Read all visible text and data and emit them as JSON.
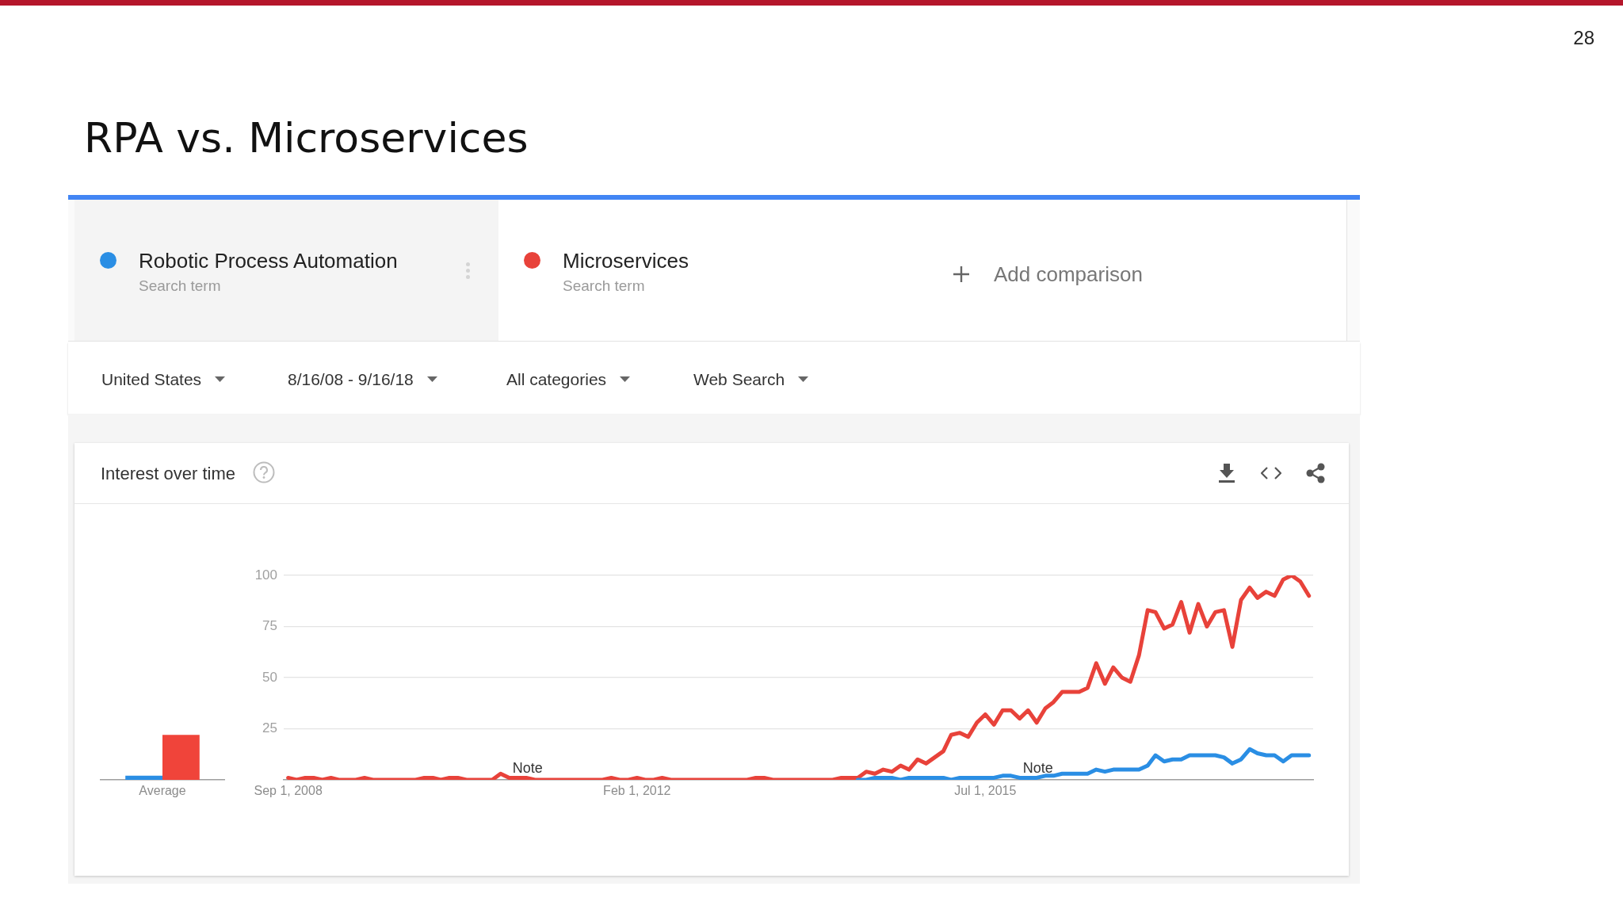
{
  "chart_data": [
    {
      "type": "bar",
      "subtitle": "Interest over time",
      "categories": [
        "Average"
      ],
      "series": [
        {
          "color": "#2a8ee4",
          "values": [
            2
          ]
        },
        {
          "color": "#f0443a",
          "values": [
            22
          ]
        }
      ],
      "ylim": [
        0,
        100
      ],
      "tick_labels": "x"
    },
    {
      "type": "line",
      "title": "RPA vs. Microservices",
      "annotations": [
        "Search term",
        "Search term",
        "Add comparison",
        "United States",
        "8/16/08 - 9/16/18",
        "All categories",
        "Web Search",
        "28",
        {
          "text": "Note",
          "x": "2010-11",
          "y": 1
        },
        {
          "text": "Note",
          "x": "2015-11",
          "y": 1
        }
      ],
      "x": [
        "2008-09",
        "2008-10",
        "2008-11",
        "2008-12",
        "2009-01",
        "2009-02",
        "2009-03",
        "2009-04",
        "2009-05",
        "2009-06",
        "2009-07",
        "2009-08",
        "2009-09",
        "2009-10",
        "2009-11",
        "2009-12",
        "2010-01",
        "2010-02",
        "2010-03",
        "2010-04",
        "2010-05",
        "2010-06",
        "2010-07",
        "2010-08",
        "2010-09",
        "2010-10",
        "2010-11",
        "2010-12",
        "2011-01",
        "2011-02",
        "2011-03",
        "2011-04",
        "2011-05",
        "2011-06",
        "2011-07",
        "2011-08",
        "2011-09",
        "2011-10",
        "2011-11",
        "2011-12",
        "2012-01",
        "2012-02",
        "2012-03",
        "2012-04",
        "2012-05",
        "2012-06",
        "2012-07",
        "2012-08",
        "2012-09",
        "2012-10",
        "2012-11",
        "2012-12",
        "2013-01",
        "2013-02",
        "2013-03",
        "2013-04",
        "2013-05",
        "2013-06",
        "2013-07",
        "2013-08",
        "2013-09",
        "2013-10",
        "2013-11",
        "2013-12",
        "2014-01",
        "2014-02",
        "2014-03",
        "2014-04",
        "2014-05",
        "2014-06",
        "2014-07",
        "2014-08",
        "2014-09",
        "2014-10",
        "2014-11",
        "2014-12",
        "2015-01",
        "2015-02",
        "2015-03",
        "2015-04",
        "2015-05",
        "2015-06",
        "2015-07",
        "2015-08",
        "2015-09",
        "2015-10",
        "2015-11",
        "2015-12",
        "2016-01",
        "2016-02",
        "2016-03",
        "2016-04",
        "2016-05",
        "2016-06",
        "2016-07",
        "2016-08",
        "2016-09",
        "2016-10",
        "2016-11",
        "2016-12",
        "2017-01",
        "2017-02",
        "2017-03",
        "2017-04",
        "2017-05",
        "2017-06",
        "2017-07",
        "2017-08",
        "2017-09",
        "2017-10",
        "2017-11",
        "2017-12",
        "2018-01",
        "2018-02",
        "2018-03",
        "2018-04",
        "2018-05",
        "2018-06",
        "2018-07",
        "2018-08",
        "2018-09"
      ],
      "series": [
        {
          "name": "Robotic Process Automation",
          "color": "#2a8ee4",
          "values": [
            null,
            null,
            null,
            null,
            null,
            null,
            null,
            null,
            null,
            null,
            null,
            null,
            null,
            null,
            null,
            null,
            null,
            null,
            null,
            null,
            null,
            null,
            null,
            null,
            null,
            null,
            null,
            null,
            null,
            null,
            null,
            null,
            null,
            null,
            null,
            null,
            null,
            null,
            null,
            null,
            null,
            null,
            null,
            null,
            null,
            null,
            null,
            null,
            null,
            null,
            null,
            null,
            null,
            null,
            null,
            null,
            null,
            null,
            null,
            null,
            null,
            null,
            null,
            null,
            null,
            null,
            null,
            0,
            0,
            1,
            1,
            1,
            0,
            1,
            1,
            1,
            1,
            1,
            0,
            1,
            1,
            1,
            1,
            1,
            2,
            2,
            1,
            1,
            1,
            2,
            2,
            3,
            3,
            3,
            3,
            5,
            4,
            5,
            5,
            5,
            5,
            7,
            12,
            9,
            10,
            10,
            12,
            12,
            12,
            12,
            11,
            8,
            10,
            15,
            13,
            12,
            12,
            9,
            12,
            12,
            12
          ]
        },
        {
          "name": "Microservices",
          "color": "#e8423a",
          "values": [
            1,
            0,
            1,
            1,
            0,
            1,
            0,
            0,
            0,
            1,
            0,
            0,
            0,
            0,
            0,
            0,
            1,
            1,
            0,
            1,
            1,
            0,
            0,
            0,
            0,
            3,
            1,
            1,
            1,
            0,
            0,
            0,
            0,
            0,
            0,
            0,
            0,
            0,
            1,
            0,
            0,
            1,
            0,
            0,
            1,
            0,
            0,
            0,
            0,
            0,
            0,
            0,
            0,
            0,
            0,
            1,
            1,
            0,
            0,
            0,
            0,
            0,
            0,
            0,
            0,
            1,
            1,
            1,
            4,
            3,
            5,
            4,
            7,
            5,
            10,
            8,
            11,
            14,
            22,
            23,
            21,
            28,
            32,
            27,
            34,
            34,
            30,
            34,
            28,
            35,
            38,
            43,
            43,
            43,
            45,
            57,
            47,
            55,
            50,
            48,
            61,
            83,
            82,
            74,
            76,
            87,
            72,
            86,
            75,
            82,
            83,
            65,
            88,
            94,
            89,
            92,
            90,
            98,
            100,
            97,
            90
          ]
        }
      ],
      "xlim": [
        "2008-08-16",
        "2018-09-16"
      ],
      "xticks": [
        {
          "value": "2008-09-01",
          "label": "Sep 1, 2008"
        },
        {
          "value": "2012-02-01",
          "label": "Feb 1, 2012"
        },
        {
          "value": "2015-07-01",
          "label": "Jul 1, 2015"
        }
      ],
      "ylim": [
        0,
        100
      ],
      "yticks": [
        {
          "value": 0,
          "label": null
        },
        25,
        50,
        75,
        100
      ],
      "grid": "y",
      "legend": "top"
    }
  ]
}
